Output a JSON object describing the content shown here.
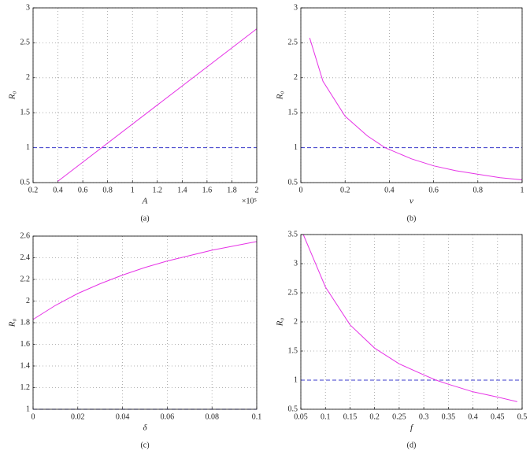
{
  "chart_data": [
    {
      "type": "line",
      "caption": "(a)",
      "xlabel": "A",
      "ylabel": "R₀",
      "x_multiplier": "×10⁵",
      "x": [
        0.4,
        1.2,
        2
      ],
      "series": [
        {
          "color": "#e633e6",
          "values": [
            0.52,
            1.61,
            2.7
          ]
        }
      ],
      "hline": 1,
      "hline_color": "#3a3acc",
      "xlim": [
        0.2,
        2
      ],
      "xticks": [
        0.2,
        0.4,
        0.6,
        0.8,
        1,
        1.2,
        1.4,
        1.6,
        1.8,
        2
      ],
      "ylim": [
        0.5,
        3
      ],
      "yticks": [
        0.5,
        1,
        1.5,
        2,
        2.5,
        3
      ],
      "grid": true
    },
    {
      "type": "line",
      "caption": "(b)",
      "xlabel": "v",
      "ylabel": "R₀",
      "x": [
        0.04,
        0.1,
        0.2,
        0.3,
        0.38,
        0.5,
        0.6,
        0.7,
        0.8,
        0.9,
        1
      ],
      "series": [
        {
          "color": "#e633e6",
          "values": [
            2.57,
            1.95,
            1.45,
            1.17,
            1.0,
            0.84,
            0.74,
            0.67,
            0.62,
            0.57,
            0.54
          ]
        }
      ],
      "hline": 1,
      "hline_color": "#3a3acc",
      "xlim": [
        0,
        1
      ],
      "xticks": [
        0,
        0.2,
        0.4,
        0.6,
        0.8,
        1
      ],
      "ylim": [
        0.5,
        3
      ],
      "yticks": [
        0.5,
        1,
        1.5,
        2,
        2.5,
        3
      ],
      "grid": true
    },
    {
      "type": "line",
      "caption": "(c)",
      "xlabel": "δ",
      "ylabel": "R₀",
      "x": [
        0,
        0.01,
        0.02,
        0.03,
        0.04,
        0.05,
        0.06,
        0.07,
        0.08,
        0.09,
        0.1
      ],
      "series": [
        {
          "color": "#e633e6",
          "values": [
            1.83,
            1.96,
            2.07,
            2.16,
            2.24,
            2.31,
            2.37,
            2.42,
            2.47,
            2.51,
            2.55
          ]
        }
      ],
      "hline": 1,
      "hline_color": "#3a3acc",
      "xlim": [
        0,
        0.1
      ],
      "xticks": [
        0,
        0.02,
        0.04,
        0.06,
        0.08,
        0.1
      ],
      "ylim": [
        1,
        2.6
      ],
      "yticks": [
        1,
        1.2,
        1.4,
        1.6,
        1.8,
        2,
        2.2,
        2.4,
        2.6
      ],
      "grid": true
    },
    {
      "type": "line",
      "caption": "(d)",
      "xlabel": "f",
      "ylabel": "R₀",
      "x": [
        0.055,
        0.07,
        0.1,
        0.15,
        0.2,
        0.25,
        0.3,
        0.325,
        0.35,
        0.4,
        0.45,
        0.49
      ],
      "series": [
        {
          "color": "#e633e6",
          "values": [
            3.5,
            3.2,
            2.6,
            1.95,
            1.55,
            1.28,
            1.09,
            1.0,
            0.93,
            0.8,
            0.71,
            0.63
          ]
        }
      ],
      "hline": 1,
      "hline_color": "#3a3acc",
      "xlim": [
        0.05,
        0.5
      ],
      "xticks": [
        0.05,
        0.1,
        0.15,
        0.2,
        0.25,
        0.3,
        0.35,
        0.4,
        0.45,
        0.5
      ],
      "ylim": [
        0.5,
        3.5
      ],
      "yticks": [
        0.5,
        1,
        1.5,
        2,
        2.5,
        3,
        3.5
      ],
      "grid": true
    }
  ]
}
